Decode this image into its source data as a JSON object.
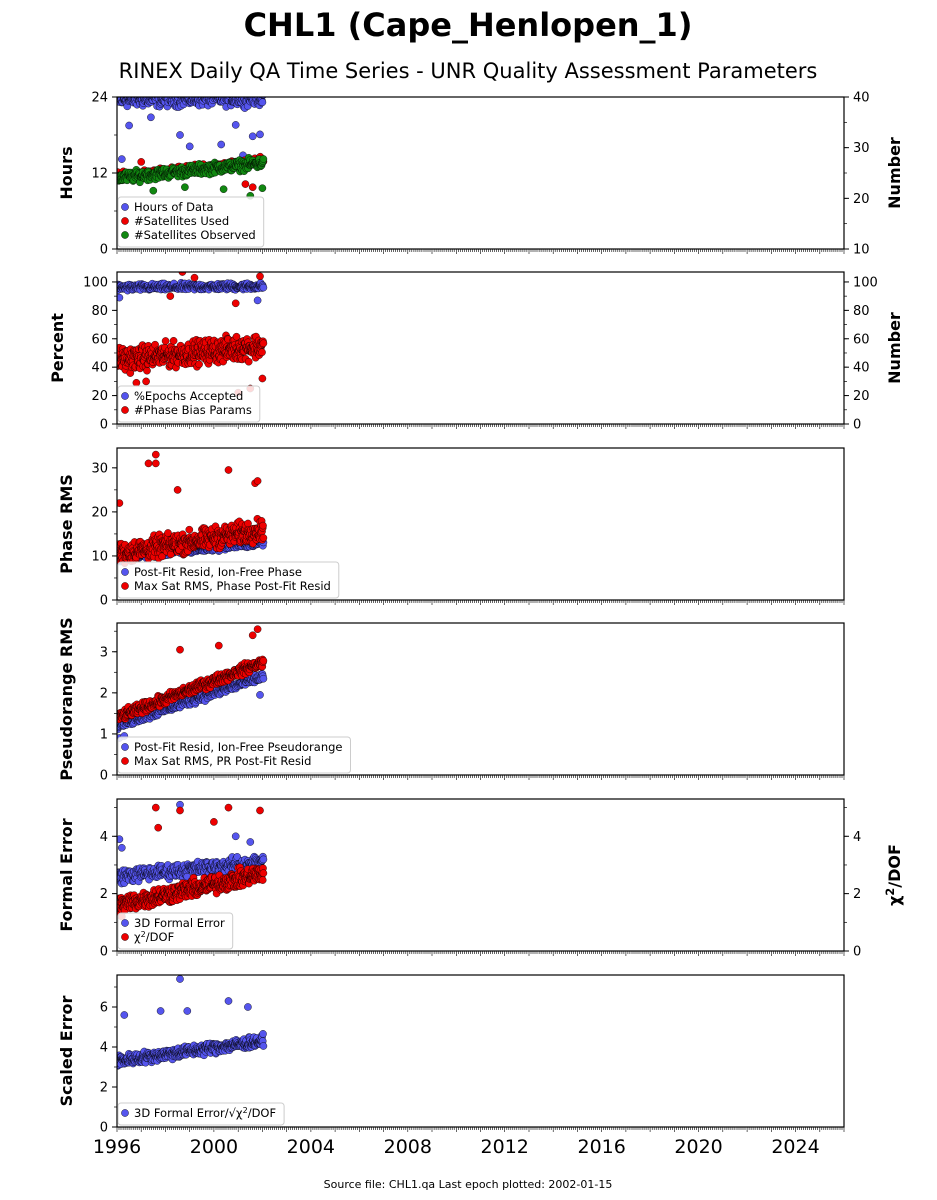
{
  "header": {
    "title": "CHL1 (Cape_Henlopen_1)",
    "subtitle": "RINEX Daily QA Time Series - UNR Quality Assessment Parameters"
  },
  "footer": {
    "source": "Source file: CHL1.qa Last epoch plotted: 2002-01-15"
  },
  "colors": {
    "blue": "#5555ee",
    "red": "#ee0000",
    "green": "#118811",
    "marker_edge": "#000000"
  },
  "chart_data": [
    {
      "type": "scatter",
      "ylabel": "Hours",
      "y2label": "Number",
      "xlim": [
        1996,
        2026
      ],
      "ylim": [
        0,
        24
      ],
      "yticks": [
        "0",
        "12",
        "24"
      ],
      "y2lim": [
        10,
        40
      ],
      "y2ticks": [
        "10",
        "20",
        "30",
        "40"
      ],
      "legend": "lower-left",
      "series": [
        {
          "name": "Hours of Data",
          "color": "blue",
          "axis": "left",
          "pattern": {
            "x": [
              1996.0,
              2002.04
            ],
            "base": [
              23.5,
              23.8
            ],
            "spread": 1.6,
            "count": 300,
            "outliers": [
              [
                1996.2,
                14.2
              ],
              [
                1996.5,
                19.5
              ],
              [
                1997.4,
                20.8
              ],
              [
                1998.6,
                18.0
              ],
              [
                1999.0,
                16.2
              ],
              [
                2000.3,
                16.5
              ],
              [
                2000.9,
                19.6
              ],
              [
                2001.2,
                14.8
              ],
              [
                2001.6,
                17.8
              ],
              [
                2001.9,
                18.1
              ]
            ]
          }
        },
        {
          "name": "#Satellites Used",
          "color": "red",
          "axis": "right",
          "pattern": {
            "x": [
              1996.0,
              2002.04
            ],
            "base": [
              24.5,
              27.5
            ],
            "spread": 1.0,
            "count": 140,
            "outliers": [
              [
                1997.0,
                27.2
              ],
              [
                2001.6,
                22.2
              ],
              [
                2001.3,
                22.8
              ]
            ]
          }
        },
        {
          "name": "#Satellites Observed",
          "color": "green",
          "axis": "right",
          "pattern": {
            "x": [
              1996.0,
              2002.04
            ],
            "base": [
              24.0,
              27.0
            ],
            "spread": 1.5,
            "count": 320,
            "outliers": [
              [
                1997.5,
                21.5
              ],
              [
                1998.8,
                22.2
              ],
              [
                2000.4,
                21.8
              ],
              [
                2001.5,
                20.5
              ],
              [
                2002.0,
                22.0
              ]
            ]
          }
        }
      ]
    },
    {
      "type": "scatter",
      "ylabel": "Percent",
      "y2label": "Number",
      "xlim": [
        1996,
        2026
      ],
      "ylim": [
        0,
        107
      ],
      "yticks": [
        "0",
        "20",
        "40",
        "60",
        "80",
        "100"
      ],
      "y2lim": [
        0,
        107
      ],
      "y2ticks": [
        "0",
        "20",
        "40",
        "60",
        "80",
        "100"
      ],
      "legend": "lower-left",
      "series": [
        {
          "name": "%Epochs Accepted",
          "color": "blue",
          "axis": "left",
          "pattern": {
            "x": [
              1996.0,
              2002.04
            ],
            "base": [
              96,
              97
            ],
            "spread": 3.5,
            "count": 320,
            "outliers": [
              [
                1996.1,
                89
              ],
              [
                2001.8,
                87
              ]
            ]
          }
        },
        {
          "name": "#Phase Bias Params",
          "color": "red",
          "axis": "right",
          "pattern": {
            "x": [
              1996.0,
              2002.04
            ],
            "base": [
              45,
              55
            ],
            "spread": 12,
            "count": 420,
            "outliers": [
              [
                1996.8,
                29
              ],
              [
                1997.2,
                30
              ],
              [
                1999.2,
                103
              ],
              [
                1998.7,
                107
              ],
              [
                2001.5,
                25
              ],
              [
                2001.0,
                22
              ],
              [
                2001.9,
                104
              ],
              [
                2002.0,
                32
              ],
              [
                1998.2,
                90
              ],
              [
                2000.9,
                85
              ]
            ]
          }
        }
      ]
    },
    {
      "type": "scatter",
      "ylabel": "Phase RMS",
      "xlim": [
        1996,
        2026
      ],
      "ylim": [
        0,
        34.5
      ],
      "yticks": [
        "0",
        "10",
        "20",
        "30"
      ],
      "legend": "lower-left",
      "series": [
        {
          "name": "Post-Fit Resid, Ion-Free Phase",
          "color": "blue",
          "axis": "left",
          "pattern": {
            "x": [
              1996.0,
              2002.04
            ],
            "base": [
              9.5,
              13.0
            ],
            "spread": 1.0,
            "count": 300,
            "outliers": []
          }
        },
        {
          "name": "Max Sat RMS, Phase Post-Fit Resid",
          "color": "red",
          "axis": "left",
          "pattern": {
            "x": [
              1996.0,
              2002.04
            ],
            "base": [
              10.5,
              16.0
            ],
            "spread": 3.5,
            "count": 420,
            "outliers": [
              [
                1997.3,
                31
              ],
              [
                1997.6,
                33
              ],
              [
                1997.6,
                31
              ],
              [
                2000.6,
                29.5
              ],
              [
                2001.7,
                26.5
              ],
              [
                2001.8,
                27
              ],
              [
                1996.1,
                22
              ],
              [
                1998.5,
                25
              ]
            ]
          }
        }
      ]
    },
    {
      "type": "scatter",
      "ylabel": "Pseudorange RMS",
      "xlim": [
        1996,
        2026
      ],
      "ylim": [
        0,
        3.7
      ],
      "yticks": [
        "0",
        "1",
        "2",
        "3"
      ],
      "legend": "lower-left",
      "series": [
        {
          "name": "Post-Fit Resid, Ion-Free Pseudorange",
          "color": "blue",
          "axis": "left",
          "pattern": {
            "x": [
              1996.0,
              2002.04
            ],
            "base": [
              1.2,
              2.4
            ],
            "spread": 0.15,
            "count": 300,
            "outliers": [
              [
                1996.1,
                0.9
              ],
              [
                1996.3,
                0.95
              ],
              [
                2001.9,
                1.95
              ]
            ]
          }
        },
        {
          "name": "Max Sat RMS, PR Post-Fit Resid",
          "color": "red",
          "axis": "left",
          "pattern": {
            "x": [
              1996.0,
              2002.04
            ],
            "base": [
              1.4,
              2.75
            ],
            "spread": 0.18,
            "count": 400,
            "outliers": [
              [
                1998.6,
                3.05
              ],
              [
                2000.2,
                3.15
              ],
              [
                2001.6,
                3.4
              ],
              [
                2001.8,
                3.55
              ]
            ]
          }
        }
      ]
    },
    {
      "type": "scatter",
      "ylabel": "Formal Error",
      "y2label": "χ²/DOF",
      "xlim": [
        1996,
        2026
      ],
      "ylim": [
        0,
        5.3
      ],
      "yticks": [
        "0",
        "2",
        "4"
      ],
      "y2lim": [
        0,
        5.3
      ],
      "y2ticks": [
        "0",
        "2",
        "4"
      ],
      "legend": "lower-left",
      "series": [
        {
          "name": "3D Formal Error",
          "color": "blue",
          "axis": "left",
          "pattern": {
            "x": [
              1996.0,
              2002.04
            ],
            "base": [
              2.6,
              3.1
            ],
            "spread": 0.35,
            "count": 320,
            "outliers": [
              [
                1996.1,
                3.9
              ],
              [
                1996.2,
                3.6
              ],
              [
                1998.6,
                5.1
              ],
              [
                2000.9,
                4.0
              ],
              [
                2001.5,
                3.8
              ]
            ]
          }
        },
        {
          "name": "χ²/DOF",
          "color": "red",
          "axis": "right",
          "pattern": {
            "x": [
              1996.0,
              2002.04
            ],
            "base": [
              1.6,
              2.7
            ],
            "spread": 0.45,
            "count": 420,
            "outliers": [
              [
                1997.6,
                5.0
              ],
              [
                1998.6,
                4.9
              ],
              [
                2000.6,
                5.0
              ],
              [
                1997.7,
                4.3
              ],
              [
                2001.9,
                4.9
              ],
              [
                2000.0,
                4.5
              ],
              [
                1996.2,
                1.2
              ]
            ]
          }
        }
      ]
    },
    {
      "type": "scatter",
      "ylabel": "Scaled Error",
      "xlim": [
        1996,
        2026
      ],
      "ylim": [
        0,
        7.6
      ],
      "yticks": [
        "0",
        "2",
        "4",
        "6"
      ],
      "xticks": [
        "1996",
        "2000",
        "2004",
        "2008",
        "2012",
        "2016",
        "2020",
        "2024"
      ],
      "legend": "lower-left",
      "series": [
        {
          "name": "3D Formal Error/√χ²/DOF",
          "color": "blue",
          "axis": "left",
          "pattern": {
            "x": [
              1996.0,
              2002.04
            ],
            "base": [
              3.3,
              4.3
            ],
            "spread": 0.4,
            "count": 420,
            "outliers": [
              [
                1998.6,
                7.4
              ],
              [
                2000.6,
                6.3
              ],
              [
                1997.8,
                5.8
              ],
              [
                1996.3,
                5.6
              ],
              [
                2001.4,
                6.0
              ],
              [
                1998.9,
                5.8
              ]
            ]
          }
        }
      ]
    }
  ]
}
